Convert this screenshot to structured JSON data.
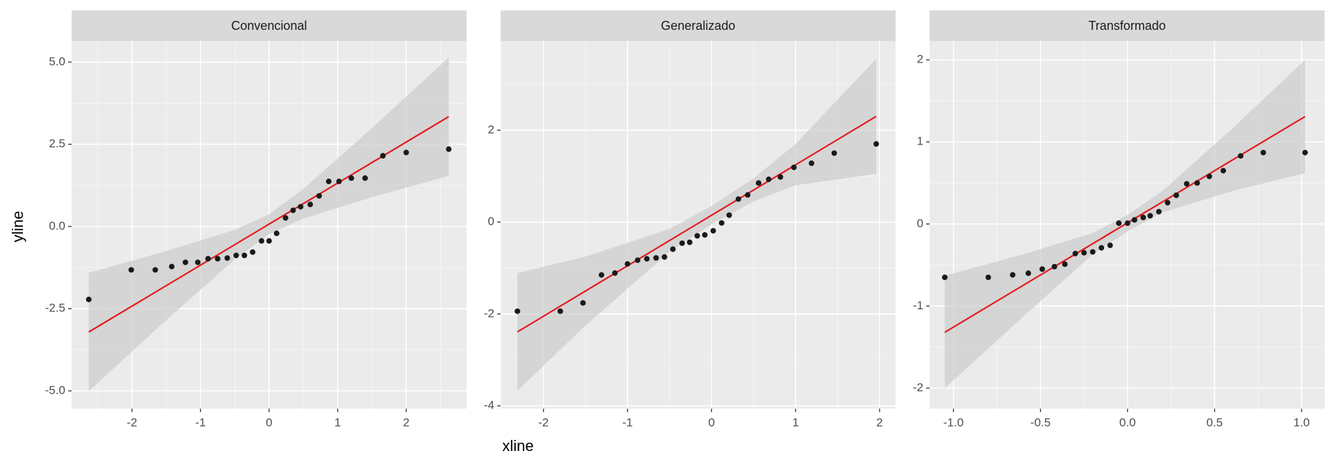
{
  "chart_data": {
    "type": "scatter",
    "x_label": "xline",
    "y_label": "yline",
    "point_color": "#1a1a1a",
    "line_color": "#e41a1c",
    "band_color": "#cccccc",
    "grid": true,
    "panels": [
      {
        "title": "Convencional",
        "x": [
          -2.63,
          -2.01,
          -1.66,
          -1.42,
          -1.22,
          -1.04,
          -0.89,
          -0.75,
          -0.61,
          -0.48,
          -0.36,
          -0.24,
          -0.11,
          0.0,
          0.11,
          0.24,
          0.35,
          0.46,
          0.6,
          0.73,
          0.87,
          1.02,
          1.2,
          1.4,
          1.66,
          2.0,
          2.62
        ],
        "y": [
          -2.22,
          -1.32,
          -1.32,
          -1.22,
          -1.09,
          -1.09,
          -0.98,
          -0.98,
          -0.96,
          -0.88,
          -0.88,
          -0.78,
          -0.44,
          -0.44,
          -0.21,
          0.26,
          0.49,
          0.6,
          0.67,
          0.93,
          1.37,
          1.37,
          1.47,
          1.47,
          2.15,
          2.25,
          2.35
        ],
        "line": {
          "x": [
            -2.63,
            2.62
          ],
          "y": [
            -3.21,
            3.34
          ]
        },
        "band": {
          "x": [
            -2.63,
            -1.5,
            -0.5,
            0,
            0.5,
            1.5,
            2.62
          ],
          "lower": [
            -5.01,
            -2.85,
            -1.0,
            -0.23,
            0.24,
            0.89,
            1.54
          ],
          "upper": [
            -1.41,
            -0.75,
            -0.1,
            0.37,
            1.14,
            2.99,
            5.14
          ]
        },
        "xlim": [
          -2.88,
          2.88
        ],
        "ylim": [
          -5.54,
          5.64
        ],
        "xticks": [
          -2,
          -1,
          0,
          1,
          2
        ],
        "yticks": [
          {
            "value": -5,
            "label": "-5.0"
          },
          {
            "value": -2.5,
            "label": "-2.5"
          },
          {
            "value": 0,
            "label": "0.0"
          },
          {
            "value": 2.5,
            "label": "2.5"
          },
          {
            "value": 5,
            "label": "5.0"
          }
        ]
      },
      {
        "title": "Generalizado",
        "x": [
          -2.31,
          -1.8,
          -1.53,
          -1.31,
          -1.15,
          -1.0,
          -0.88,
          -0.77,
          -0.66,
          -0.56,
          -0.46,
          -0.35,
          -0.26,
          -0.17,
          -0.08,
          0.02,
          0.12,
          0.21,
          0.32,
          0.43,
          0.56,
          0.68,
          0.82,
          0.98,
          1.19,
          1.46,
          1.96
        ],
        "y": [
          -1.94,
          -1.94,
          -1.76,
          -1.15,
          -1.11,
          -0.91,
          -0.83,
          -0.8,
          -0.78,
          -0.76,
          -0.59,
          -0.46,
          -0.44,
          -0.3,
          -0.28,
          -0.19,
          -0.02,
          0.15,
          0.5,
          0.59,
          0.85,
          0.93,
          0.98,
          1.19,
          1.28,
          1.5,
          1.7
        ],
        "line": {
          "x": [
            -2.31,
            1.96
          ],
          "y": [
            -2.39,
            2.3
          ]
        },
        "band": {
          "x": [
            -2.31,
            -1.5,
            -0.5,
            0,
            0.5,
            1.0,
            1.96
          ],
          "lower": [
            -3.67,
            -2.25,
            -0.65,
            -0.05,
            0.45,
            0.8,
            1.05
          ],
          "upper": [
            -1.11,
            -0.75,
            -0.15,
            0.35,
            0.95,
            1.7,
            3.55
          ]
        },
        "xlim": [
          -2.51,
          2.19
        ],
        "ylim": [
          -4.06,
          3.94
        ],
        "xticks": [
          -2,
          -1,
          0,
          1,
          2
        ],
        "yticks": [
          -4,
          -2,
          0,
          2
        ]
      },
      {
        "title": "Transformado",
        "x": [
          -1.05,
          -0.8,
          -0.66,
          -0.57,
          -0.49,
          -0.42,
          -0.36,
          -0.3,
          -0.25,
          -0.2,
          -0.15,
          -0.1,
          -0.05,
          0.0,
          0.04,
          0.09,
          0.13,
          0.18,
          0.23,
          0.28,
          0.34,
          0.4,
          0.47,
          0.55,
          0.65,
          0.78,
          1.02
        ],
        "y": [
          -0.65,
          -0.65,
          -0.62,
          -0.6,
          -0.55,
          -0.52,
          -0.49,
          -0.36,
          -0.35,
          -0.34,
          -0.29,
          -0.26,
          0.01,
          0.01,
          0.05,
          0.08,
          0.1,
          0.15,
          0.26,
          0.35,
          0.49,
          0.5,
          0.58,
          0.65,
          0.83,
          0.87,
          0.87
        ],
        "line": {
          "x": [
            -1.05,
            1.02
          ],
          "y": [
            -1.32,
            1.31
          ]
        },
        "band": {
          "x": [
            -1.05,
            -0.6,
            -0.2,
            0,
            0.2,
            0.6,
            1.02
          ],
          "lower": [
            -2.0,
            -1.13,
            -0.37,
            -0.09,
            0.14,
            0.4,
            0.62
          ],
          "upper": [
            -0.63,
            -0.37,
            -0.11,
            0.11,
            0.4,
            1.16,
            2.0
          ]
        },
        "xlim": [
          -1.137,
          1.132
        ],
        "ylim": [
          -2.25,
          2.23
        ],
        "xticks": [
          {
            "value": -1,
            "label": "-1.0"
          },
          -0.5,
          {
            "value": 0,
            "label": "0.0"
          },
          0.5,
          {
            "value": 1,
            "label": "1.0"
          }
        ],
        "yticks": [
          -2,
          -1,
          0,
          1,
          2
        ]
      }
    ]
  }
}
